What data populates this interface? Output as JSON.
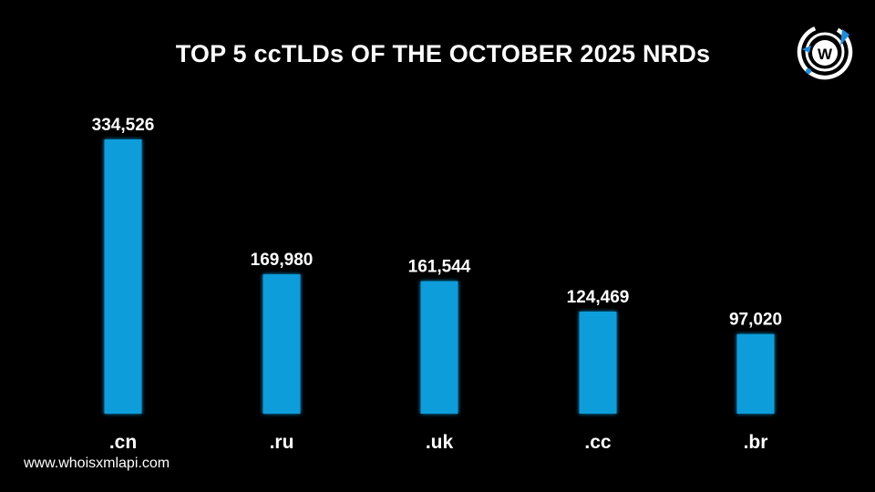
{
  "header": {
    "title": "TOP 5 ccTLDs OF THE OCTOBER 2025 NRDs"
  },
  "logo": {
    "icon": "whoisxmlapi-logo-icon",
    "letter": "W"
  },
  "footer": {
    "website": "www.whoisxmlapi.com"
  },
  "colors": {
    "bar": "#0e9ddb",
    "background": "#000000",
    "text": "#ffffff"
  },
  "chart_data": {
    "type": "bar",
    "title": "TOP 5 ccTLDs OF THE OCTOBER 2025 NRDs",
    "categories": [
      ".cn",
      ".ru",
      ".uk",
      ".cc",
      ".br"
    ],
    "values": [
      334526,
      169980,
      161544,
      124469,
      97020
    ],
    "value_labels": [
      "334,526",
      "169,980",
      "161,544",
      "124,469",
      "97,020"
    ],
    "xlabel": "",
    "ylabel": "",
    "grid": false,
    "legend": "none"
  }
}
